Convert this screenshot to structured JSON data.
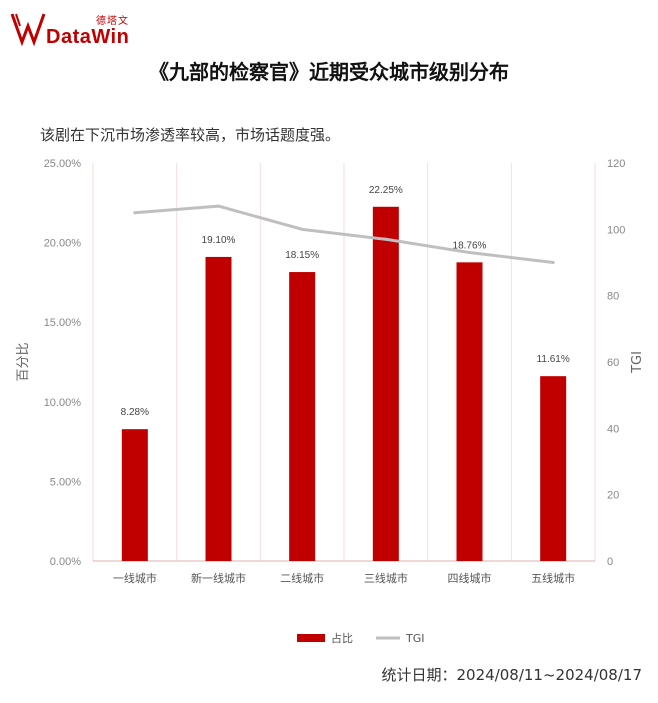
{
  "brand": {
    "name_cn": "德塔文",
    "name_en": "DataWin",
    "color": "#c00000"
  },
  "title": "《九部的检察官》近期受众城市级别分布",
  "subtitle": "该剧在下沉市场渗透率较高，市场话题度强。",
  "footer": "统计日期：2024/08/11~2024/08/17",
  "chart_data": {
    "type": "bar",
    "categories": [
      "一线城市",
      "新一线城市",
      "二线城市",
      "三线城市",
      "四线城市",
      "五线城市"
    ],
    "series": [
      {
        "name": "占比",
        "kind": "bar",
        "axis": "left",
        "color": "#c00000",
        "values": [
          8.28,
          19.1,
          18.15,
          22.25,
          18.76,
          11.61
        ],
        "labels": [
          "8.28%",
          "19.10%",
          "18.15%",
          "22.25%",
          "18.76%",
          "11.61%"
        ]
      },
      {
        "name": "TGI",
        "kind": "line",
        "axis": "right",
        "color": "#bfbfbf",
        "values": [
          105,
          107,
          100,
          97,
          93,
          90
        ]
      }
    ],
    "ylabel": "百分比",
    "y2label": "TGI",
    "ylim": [
      0,
      25
    ],
    "y2lim": [
      0,
      120
    ],
    "yticks": [
      "0.00%",
      "5.00%",
      "10.00%",
      "15.00%",
      "20.00%",
      "25.00%"
    ],
    "y2ticks": [
      "0",
      "20",
      "40",
      "60",
      "80",
      "100",
      "120"
    ],
    "legend": "bottom",
    "grid": "vertical"
  }
}
